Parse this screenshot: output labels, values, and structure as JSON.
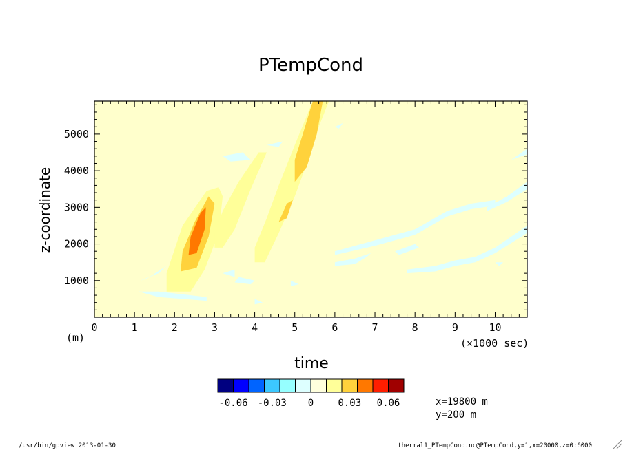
{
  "chart_data": {
    "type": "heatmap",
    "title": "PTempCond",
    "xlabel": "time",
    "ylabel": "z-coordinate",
    "x_unit_label": "(×1000 sec)",
    "y_unit_label": "(m)",
    "xlim": [
      0,
      10.8
    ],
    "ylim": [
      0,
      5900
    ],
    "x_ticks": [
      "0",
      "1",
      "2",
      "3",
      "4",
      "5",
      "6",
      "7",
      "8",
      "9",
      "10"
    ],
    "y_ticks": [
      "1000",
      "2000",
      "3000",
      "4000",
      "5000"
    ],
    "background_color": "#ffffcc",
    "colorbar": {
      "colors": [
        "#000080",
        "#0000ff",
        "#0064ff",
        "#3cc8ff",
        "#96ffff",
        "#ddffff",
        "#ffffdd",
        "#ffff99",
        "#ffd23c",
        "#ff7800",
        "#ff1e00",
        "#a00000"
      ],
      "tick_labels": [
        "-0.06",
        "-0.03",
        "0",
        "0.03",
        "0.06"
      ]
    },
    "contour_regions": [
      {
        "level": "0 to 0.01",
        "color": "#ffff99",
        "desc": "first tilted plume, t≈1.8–3.0, z≈700–3500"
      },
      {
        "level": "0.01 to 0.02",
        "color": "#ffd23c",
        "desc": "plume core, t≈2.2–2.9, z≈1300–3300"
      },
      {
        "level": "0.02 to 0.03",
        "color": "#ff7800",
        "desc": "max core, t≈2.4–2.8, z≈1700–3000"
      },
      {
        "level": "0 to 0.01",
        "color": "#ffff99",
        "desc": "second band, t≈3.0–4.0, z≈1900–4500"
      },
      {
        "level": "0 to 0.02",
        "color": "#ffd23c",
        "desc": "third band, t≈4.0–5.8, z≈1500–5900"
      },
      {
        "level": "-0.01 to 0",
        "color": "#ddffff",
        "desc": "negative bands, t≈6–10.8, z≈1000–4500"
      }
    ],
    "annotations": [
      "x=19800 m",
      "y=200 m"
    ]
  },
  "footer": {
    "left": "/usr/bin/gpview  2013-01-30",
    "right": "thermal1_PTempCond.nc@PTempCond,y=1,x=20000,z=0:6000"
  }
}
